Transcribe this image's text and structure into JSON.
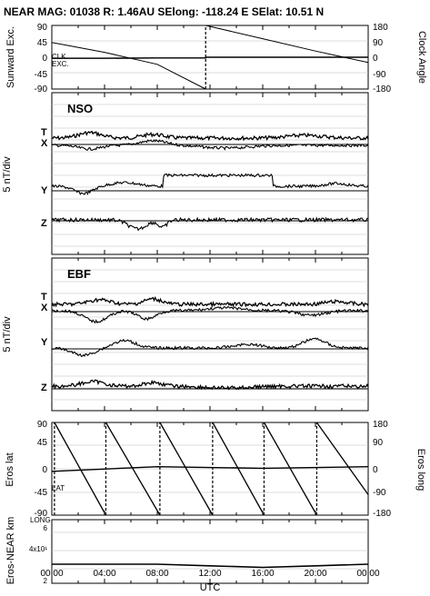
{
  "header": {
    "title": "NEAR MAG: 01038  R: 1.46AU  SElong: -118.24 E  SElat:   10.51 N"
  },
  "axes": {
    "xlabel": "UTC",
    "x_ticks": [
      "00:00",
      "04:00",
      "08:00",
      "12:00",
      "16:00",
      "20:00",
      "00:00"
    ]
  },
  "panels": {
    "sunward": {
      "left_label": "Sunward Exc.",
      "right_label": "Clock Angle",
      "left_ticks": [
        "90",
        "45",
        "0",
        "-45",
        "-90"
      ],
      "right_ticks": [
        "180",
        "90",
        "0",
        "-90",
        "-180"
      ],
      "clk_label": "CLK.",
      "exc_label": "EXC."
    },
    "nso": {
      "title": "NSO",
      "ylabel": "5 nT/div",
      "series_labels": [
        "T",
        "X",
        "Y",
        "Z"
      ]
    },
    "ebf": {
      "title": "EBF",
      "ylabel": "5 nT/div",
      "series_labels": [
        "T",
        "X",
        "Y",
        "Z"
      ]
    },
    "eros": {
      "left_label": "Eros lat",
      "right_label": "Eros long",
      "left_ticks": [
        "90",
        "45",
        "0",
        "-45",
        "-90"
      ],
      "right_ticks": [
        "180",
        "90",
        "0",
        "-90",
        "-180"
      ],
      "lat_label": "LAT",
      "long_label": "LONG"
    },
    "distance": {
      "ylabel": "Eros-NEAR km",
      "ticks": [
        "6",
        "4x10¹",
        "2"
      ]
    }
  },
  "chart_data": [
    {
      "type": "line",
      "panel": "Sunward Exc. / Clock Angle",
      "x": [
        "00:00",
        "04:00",
        "08:00",
        "11:40",
        "11:40",
        "16:00",
        "20:00",
        "24:00"
      ],
      "series": [
        {
          "name": "CLK.",
          "axis": "right",
          "values": [
            84,
            28,
            -40,
            -180,
            180,
            105,
            35,
            -30
          ]
        },
        {
          "name": "EXC.",
          "axis": "left",
          "values": [
            -3,
            -3,
            -2,
            -2,
            0,
            0,
            0,
            0
          ]
        }
      ],
      "ylim_left": [
        -90,
        90
      ],
      "ylim_right": [
        -180,
        180
      ]
    },
    {
      "type": "line",
      "panel": "NSO",
      "ylabel": "5 nT/div",
      "series": [
        {
          "name": "T"
        },
        {
          "name": "X"
        },
        {
          "name": "Y"
        },
        {
          "name": "Z"
        }
      ]
    },
    {
      "type": "line",
      "panel": "EBF",
      "ylabel": "5 nT/div",
      "series": [
        {
          "name": "T"
        },
        {
          "name": "X"
        },
        {
          "name": "Y"
        },
        {
          "name": "Z"
        }
      ]
    },
    {
      "type": "line",
      "panel": "Eros lat / Eros long",
      "series": [
        {
          "name": "LONG",
          "axis": "right",
          "x_hours": [
            0.2,
            0.2,
            4.1,
            4.1,
            8.2,
            8.2,
            12.2,
            12.2,
            16.1,
            16.1,
            20.1,
            20.1,
            24.0
          ],
          "values": [
            -180,
            180,
            -180,
            180,
            -180,
            180,
            -180,
            180,
            -180,
            180,
            -180,
            180,
            -100
          ]
        },
        {
          "name": "LAT",
          "axis": "left",
          "x_hours": [
            0,
            8,
            16,
            24
          ],
          "values": [
            -5,
            4,
            1,
            4
          ]
        }
      ],
      "ylim_left": [
        -90,
        90
      ],
      "ylim_right": [
        -180,
        180
      ]
    },
    {
      "type": "line",
      "panel": "Eros-NEAR km",
      "series": [
        {
          "name": "distance",
          "x_hours": [
            0,
            8,
            12,
            16,
            20,
            24
          ],
          "values": [
            32,
            32,
            31,
            30,
            31,
            32
          ]
        }
      ],
      "ylim": [
        20,
        60
      ]
    }
  ]
}
